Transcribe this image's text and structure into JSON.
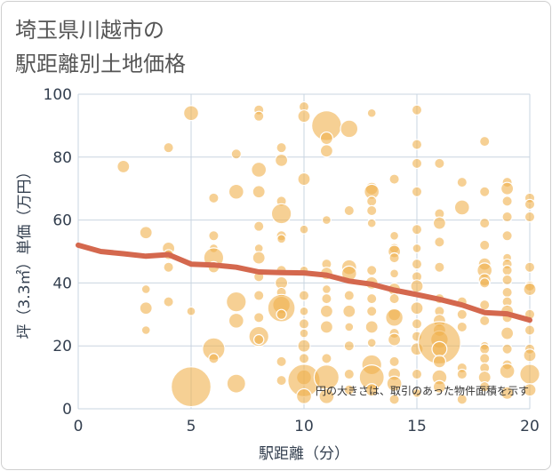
{
  "chart_data": {
    "type": "scatter",
    "title_lines": [
      "埼玉県川越市の",
      "駅距離別土地価格"
    ],
    "xlabel": "駅距離（分）",
    "ylabel": "坪（3.3㎡）単価（万円）",
    "xlim": [
      0,
      20
    ],
    "ylim": [
      0,
      100
    ],
    "x_ticks": [
      "0",
      "5",
      "10",
      "15",
      "20"
    ],
    "y_ticks": [
      "0",
      "20",
      "40",
      "60",
      "80",
      "100"
    ],
    "grid": true,
    "note": "円の大きさは、取引のあった物件面積を示す",
    "colors": {
      "bubble": "#f0b04d",
      "trend": "#d4684e",
      "grid": "#c9d4e0",
      "plot_bg": "#ffffff"
    },
    "points": [
      {
        "x": 2,
        "y": 77,
        "s": 1.0
      },
      {
        "x": 3,
        "y": 56,
        "s": 1.0
      },
      {
        "x": 3,
        "y": 38,
        "s": 0.7
      },
      {
        "x": 3,
        "y": 32,
        "s": 1.0
      },
      {
        "x": 3,
        "y": 25,
        "s": 0.7
      },
      {
        "x": 4,
        "y": 83,
        "s": 0.8
      },
      {
        "x": 4,
        "y": 51,
        "s": 1.0
      },
      {
        "x": 4,
        "y": 49,
        "s": 0.8
      },
      {
        "x": 4,
        "y": 45,
        "s": 0.8
      },
      {
        "x": 4,
        "y": 34,
        "s": 0.8
      },
      {
        "x": 5,
        "y": 94,
        "s": 1.2
      },
      {
        "x": 5,
        "y": 31,
        "s": 0.7
      },
      {
        "x": 5,
        "y": 7,
        "s": 3.2
      },
      {
        "x": 6,
        "y": 67,
        "s": 0.8
      },
      {
        "x": 6,
        "y": 55,
        "s": 0.8
      },
      {
        "x": 6,
        "y": 51,
        "s": 0.7
      },
      {
        "x": 6,
        "y": 48,
        "s": 1.6
      },
      {
        "x": 6,
        "y": 45,
        "s": 0.9
      },
      {
        "x": 6,
        "y": 19,
        "s": 1.8
      },
      {
        "x": 6,
        "y": 16,
        "s": 0.8
      },
      {
        "x": 7,
        "y": 81,
        "s": 0.8
      },
      {
        "x": 7,
        "y": 69,
        "s": 1.2
      },
      {
        "x": 7,
        "y": 34,
        "s": 1.6
      },
      {
        "x": 7,
        "y": 28,
        "s": 1.2
      },
      {
        "x": 7,
        "y": 8,
        "s": 1.5
      },
      {
        "x": 8,
        "y": 95,
        "s": 0.8
      },
      {
        "x": 8,
        "y": 93,
        "s": 0.8
      },
      {
        "x": 8,
        "y": 76,
        "s": 1.2
      },
      {
        "x": 8,
        "y": 69,
        "s": 1.0
      },
      {
        "x": 8,
        "y": 58,
        "s": 0.8
      },
      {
        "x": 8,
        "y": 51,
        "s": 0.7
      },
      {
        "x": 8,
        "y": 48,
        "s": 1.0
      },
      {
        "x": 8,
        "y": 42,
        "s": 0.8
      },
      {
        "x": 8,
        "y": 36,
        "s": 0.8
      },
      {
        "x": 8,
        "y": 29,
        "s": 0.8
      },
      {
        "x": 8,
        "y": 23,
        "s": 1.6
      },
      {
        "x": 8,
        "y": 22,
        "s": 0.8
      },
      {
        "x": 9,
        "y": 83,
        "s": 0.8
      },
      {
        "x": 9,
        "y": 79,
        "s": 1.0
      },
      {
        "x": 9,
        "y": 66,
        "s": 0.8
      },
      {
        "x": 9,
        "y": 62,
        "s": 1.6
      },
      {
        "x": 9,
        "y": 55,
        "s": 0.8
      },
      {
        "x": 9,
        "y": 54,
        "s": 0.7
      },
      {
        "x": 9,
        "y": 44,
        "s": 0.8
      },
      {
        "x": 9,
        "y": 40,
        "s": 1.0
      },
      {
        "x": 9,
        "y": 37,
        "s": 0.8
      },
      {
        "x": 9,
        "y": 33,
        "s": 1.4
      },
      {
        "x": 9,
        "y": 32,
        "s": 2.2
      },
      {
        "x": 9,
        "y": 30,
        "s": 0.8
      },
      {
        "x": 9,
        "y": 15,
        "s": 0.8
      },
      {
        "x": 9,
        "y": 9,
        "s": 0.8
      },
      {
        "x": 10,
        "y": 96,
        "s": 0.8
      },
      {
        "x": 10,
        "y": 93,
        "s": 1.0
      },
      {
        "x": 10,
        "y": 73,
        "s": 1.0
      },
      {
        "x": 10,
        "y": 57,
        "s": 0.7
      },
      {
        "x": 10,
        "y": 44,
        "s": 0.7
      },
      {
        "x": 10,
        "y": 36,
        "s": 0.8
      },
      {
        "x": 10,
        "y": 31,
        "s": 0.7
      },
      {
        "x": 10,
        "y": 27,
        "s": 0.8
      },
      {
        "x": 10,
        "y": 24,
        "s": 0.7
      },
      {
        "x": 10,
        "y": 20,
        "s": 1.0
      },
      {
        "x": 10,
        "y": 16,
        "s": 0.8
      },
      {
        "x": 10,
        "y": 10,
        "s": 1.2
      },
      {
        "x": 10,
        "y": 9,
        "s": 2.6
      },
      {
        "x": 10,
        "y": 4,
        "s": 1.2
      },
      {
        "x": 11,
        "y": 90,
        "s": 2.4
      },
      {
        "x": 11,
        "y": 86,
        "s": 1.0
      },
      {
        "x": 11,
        "y": 82,
        "s": 1.0
      },
      {
        "x": 11,
        "y": 60,
        "s": 0.7
      },
      {
        "x": 11,
        "y": 46,
        "s": 0.8
      },
      {
        "x": 11,
        "y": 43,
        "s": 1.0
      },
      {
        "x": 11,
        "y": 38,
        "s": 0.7
      },
      {
        "x": 11,
        "y": 35,
        "s": 0.8
      },
      {
        "x": 11,
        "y": 31,
        "s": 1.0
      },
      {
        "x": 11,
        "y": 26,
        "s": 1.0
      },
      {
        "x": 11,
        "y": 16,
        "s": 0.8
      },
      {
        "x": 11,
        "y": 10,
        "s": 2.0
      },
      {
        "x": 11,
        "y": 4,
        "s": 1.2
      },
      {
        "x": 12,
        "y": 89,
        "s": 1.4
      },
      {
        "x": 12,
        "y": 63,
        "s": 0.8
      },
      {
        "x": 12,
        "y": 45,
        "s": 1.2
      },
      {
        "x": 12,
        "y": 43,
        "s": 1.2
      },
      {
        "x": 12,
        "y": 36,
        "s": 0.8
      },
      {
        "x": 12,
        "y": 31,
        "s": 1.0
      },
      {
        "x": 12,
        "y": 26,
        "s": 0.7
      },
      {
        "x": 12,
        "y": 20,
        "s": 0.8
      },
      {
        "x": 12,
        "y": 11,
        "s": 0.8
      },
      {
        "x": 12,
        "y": 6,
        "s": 0.8
      },
      {
        "x": 13,
        "y": 94,
        "s": 0.7
      },
      {
        "x": 13,
        "y": 70,
        "s": 1.0
      },
      {
        "x": 13,
        "y": 69,
        "s": 1.2
      },
      {
        "x": 13,
        "y": 66,
        "s": 0.8
      },
      {
        "x": 13,
        "y": 63,
        "s": 0.8
      },
      {
        "x": 13,
        "y": 59,
        "s": 0.7
      },
      {
        "x": 13,
        "y": 44,
        "s": 0.8
      },
      {
        "x": 13,
        "y": 40,
        "s": 1.0
      },
      {
        "x": 13,
        "y": 35,
        "s": 0.8
      },
      {
        "x": 13,
        "y": 31,
        "s": 0.8
      },
      {
        "x": 13,
        "y": 26,
        "s": 1.0
      },
      {
        "x": 13,
        "y": 21,
        "s": 0.7
      },
      {
        "x": 13,
        "y": 14,
        "s": 1.6
      },
      {
        "x": 13,
        "y": 10,
        "s": 2.0
      },
      {
        "x": 13,
        "y": 6,
        "s": 1.0
      },
      {
        "x": 14,
        "y": 73,
        "s": 0.8
      },
      {
        "x": 14,
        "y": 55,
        "s": 0.7
      },
      {
        "x": 14,
        "y": 51,
        "s": 0.8
      },
      {
        "x": 14,
        "y": 50,
        "s": 1.0
      },
      {
        "x": 14,
        "y": 48,
        "s": 0.8
      },
      {
        "x": 14,
        "y": 43,
        "s": 0.7
      },
      {
        "x": 14,
        "y": 38,
        "s": 1.0
      },
      {
        "x": 14,
        "y": 35,
        "s": 0.8
      },
      {
        "x": 14,
        "y": 30,
        "s": 1.0
      },
      {
        "x": 14,
        "y": 29,
        "s": 1.4
      },
      {
        "x": 14,
        "y": 24,
        "s": 0.8
      },
      {
        "x": 14,
        "y": 22,
        "s": 1.0
      },
      {
        "x": 14,
        "y": 15,
        "s": 0.8
      },
      {
        "x": 14,
        "y": 11,
        "s": 1.0
      },
      {
        "x": 14,
        "y": 8,
        "s": 1.2
      },
      {
        "x": 14,
        "y": 3,
        "s": 0.8
      },
      {
        "x": 15,
        "y": 95,
        "s": 0.8
      },
      {
        "x": 15,
        "y": 84,
        "s": 0.8
      },
      {
        "x": 15,
        "y": 78,
        "s": 0.8
      },
      {
        "x": 15,
        "y": 69,
        "s": 0.8
      },
      {
        "x": 15,
        "y": 57,
        "s": 0.8
      },
      {
        "x": 15,
        "y": 51,
        "s": 0.7
      },
      {
        "x": 15,
        "y": 46,
        "s": 0.8
      },
      {
        "x": 15,
        "y": 42,
        "s": 0.8
      },
      {
        "x": 15,
        "y": 39,
        "s": 1.0
      },
      {
        "x": 15,
        "y": 32,
        "s": 1.0
      },
      {
        "x": 15,
        "y": 27,
        "s": 0.8
      },
      {
        "x": 15,
        "y": 23,
        "s": 0.8
      },
      {
        "x": 15,
        "y": 19,
        "s": 1.0
      },
      {
        "x": 15,
        "y": 11,
        "s": 0.8
      },
      {
        "x": 15,
        "y": 5,
        "s": 0.7
      },
      {
        "x": 16,
        "y": 78,
        "s": 0.8
      },
      {
        "x": 16,
        "y": 62,
        "s": 0.8
      },
      {
        "x": 16,
        "y": 59,
        "s": 1.0
      },
      {
        "x": 16,
        "y": 53,
        "s": 0.8
      },
      {
        "x": 16,
        "y": 45,
        "s": 0.8
      },
      {
        "x": 16,
        "y": 35,
        "s": 0.8
      },
      {
        "x": 16,
        "y": 31,
        "s": 0.8
      },
      {
        "x": 16,
        "y": 28,
        "s": 1.0
      },
      {
        "x": 16,
        "y": 25,
        "s": 1.0
      },
      {
        "x": 16,
        "y": 22,
        "s": 1.4
      },
      {
        "x": 16,
        "y": 21,
        "s": 3.4
      },
      {
        "x": 16,
        "y": 19,
        "s": 1.2
      },
      {
        "x": 16,
        "y": 15,
        "s": 1.0
      },
      {
        "x": 16,
        "y": 10,
        "s": 1.2
      },
      {
        "x": 16,
        "y": 7,
        "s": 1.0
      },
      {
        "x": 17,
        "y": 72,
        "s": 0.8
      },
      {
        "x": 17,
        "y": 64,
        "s": 1.2
      },
      {
        "x": 17,
        "y": 34,
        "s": 0.8
      },
      {
        "x": 17,
        "y": 30,
        "s": 0.8
      },
      {
        "x": 17,
        "y": 26,
        "s": 0.8
      },
      {
        "x": 17,
        "y": 13,
        "s": 0.8
      },
      {
        "x": 17,
        "y": 11,
        "s": 0.8
      },
      {
        "x": 17,
        "y": 3,
        "s": 0.8
      },
      {
        "x": 18,
        "y": 85,
        "s": 0.8
      },
      {
        "x": 18,
        "y": 69,
        "s": 0.8
      },
      {
        "x": 18,
        "y": 59,
        "s": 0.8
      },
      {
        "x": 18,
        "y": 52,
        "s": 0.8
      },
      {
        "x": 18,
        "y": 46,
        "s": 1.0
      },
      {
        "x": 18,
        "y": 44,
        "s": 1.2
      },
      {
        "x": 18,
        "y": 41,
        "s": 1.0
      },
      {
        "x": 18,
        "y": 40,
        "s": 0.8
      },
      {
        "x": 18,
        "y": 33,
        "s": 0.8
      },
      {
        "x": 18,
        "y": 28,
        "s": 0.8
      },
      {
        "x": 18,
        "y": 20,
        "s": 0.7
      },
      {
        "x": 18,
        "y": 19,
        "s": 0.8
      },
      {
        "x": 18,
        "y": 16,
        "s": 0.8
      },
      {
        "x": 18,
        "y": 13,
        "s": 0.8
      },
      {
        "x": 18,
        "y": 10,
        "s": 1.0
      },
      {
        "x": 18,
        "y": 7,
        "s": 0.8
      },
      {
        "x": 19,
        "y": 72,
        "s": 0.8
      },
      {
        "x": 19,
        "y": 70,
        "s": 1.0
      },
      {
        "x": 19,
        "y": 66,
        "s": 0.8
      },
      {
        "x": 19,
        "y": 61,
        "s": 0.8
      },
      {
        "x": 19,
        "y": 55,
        "s": 0.8
      },
      {
        "x": 19,
        "y": 48,
        "s": 0.7
      },
      {
        "x": 19,
        "y": 46,
        "s": 0.8
      },
      {
        "x": 19,
        "y": 44,
        "s": 0.8
      },
      {
        "x": 19,
        "y": 41,
        "s": 0.8
      },
      {
        "x": 19,
        "y": 37,
        "s": 0.8
      },
      {
        "x": 19,
        "y": 34,
        "s": 0.8
      },
      {
        "x": 19,
        "y": 31,
        "s": 1.0
      },
      {
        "x": 19,
        "y": 29,
        "s": 0.8
      },
      {
        "x": 19,
        "y": 24,
        "s": 1.0
      },
      {
        "x": 19,
        "y": 19,
        "s": 0.8
      },
      {
        "x": 19,
        "y": 14,
        "s": 0.8
      },
      {
        "x": 19,
        "y": 12,
        "s": 1.2
      },
      {
        "x": 19,
        "y": 5,
        "s": 1.0
      },
      {
        "x": 20,
        "y": 67,
        "s": 0.8
      },
      {
        "x": 20,
        "y": 65,
        "s": 0.8
      },
      {
        "x": 20,
        "y": 61,
        "s": 0.8
      },
      {
        "x": 20,
        "y": 45,
        "s": 0.8
      },
      {
        "x": 20,
        "y": 39,
        "s": 0.8
      },
      {
        "x": 20,
        "y": 38,
        "s": 1.0
      },
      {
        "x": 20,
        "y": 30,
        "s": 0.8
      },
      {
        "x": 20,
        "y": 25,
        "s": 0.8
      },
      {
        "x": 20,
        "y": 19,
        "s": 0.8
      },
      {
        "x": 20,
        "y": 17,
        "s": 1.0
      },
      {
        "x": 20,
        "y": 11,
        "s": 1.6
      },
      {
        "x": 20,
        "y": 6,
        "s": 1.0
      }
    ],
    "trend": {
      "x": [
        0,
        1,
        2,
        3,
        4,
        5,
        6,
        7,
        8,
        9,
        10,
        11,
        12,
        13,
        14,
        15,
        16,
        17,
        18,
        19,
        20
      ],
      "y": [
        52,
        50,
        49.3,
        48.5,
        49,
        46,
        45.7,
        45,
        43.5,
        43.3,
        43.2,
        42.5,
        40.6,
        39.6,
        37.7,
        36.3,
        34.8,
        33,
        30.6,
        30.2,
        28.2
      ]
    }
  }
}
